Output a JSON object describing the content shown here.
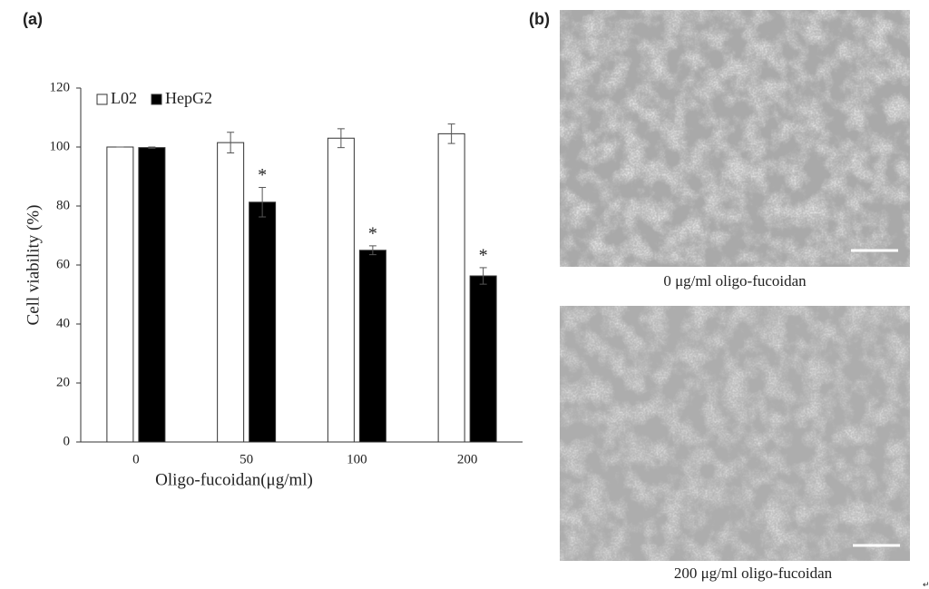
{
  "panel_labels": [
    "(a)",
    "(b)"
  ],
  "chart_data": {
    "type": "bar",
    "x_label": "Oligo-fucoidan(μg/ml)",
    "y_label": "Cell viability (%)",
    "categories": [
      "0",
      "50",
      "100",
      "200"
    ],
    "series": [
      {
        "name": "L02",
        "color": "#ffffff",
        "values": [
          100,
          101.5,
          103,
          104.5
        ],
        "errors": [
          0,
          3.5,
          3.2,
          3.3
        ]
      },
      {
        "name": "HepG2",
        "color": "#000000",
        "values": [
          99.8,
          81.3,
          65,
          56.3
        ],
        "errors": [
          0.2,
          5,
          1.5,
          2.8
        ],
        "significance": [
          null,
          "*",
          "*",
          "*"
        ]
      }
    ],
    "ylim": [
      0,
      120
    ],
    "yticks": [
      0,
      20,
      40,
      60,
      80,
      100,
      120
    ],
    "grid": false,
    "legend": "upper left"
  },
  "images": [
    {
      "caption": "0 μg/ml oligo-fucoidan"
    },
    {
      "caption": "200 μg/ml oligo-fucoidan"
    }
  ],
  "end_mark": "↵"
}
